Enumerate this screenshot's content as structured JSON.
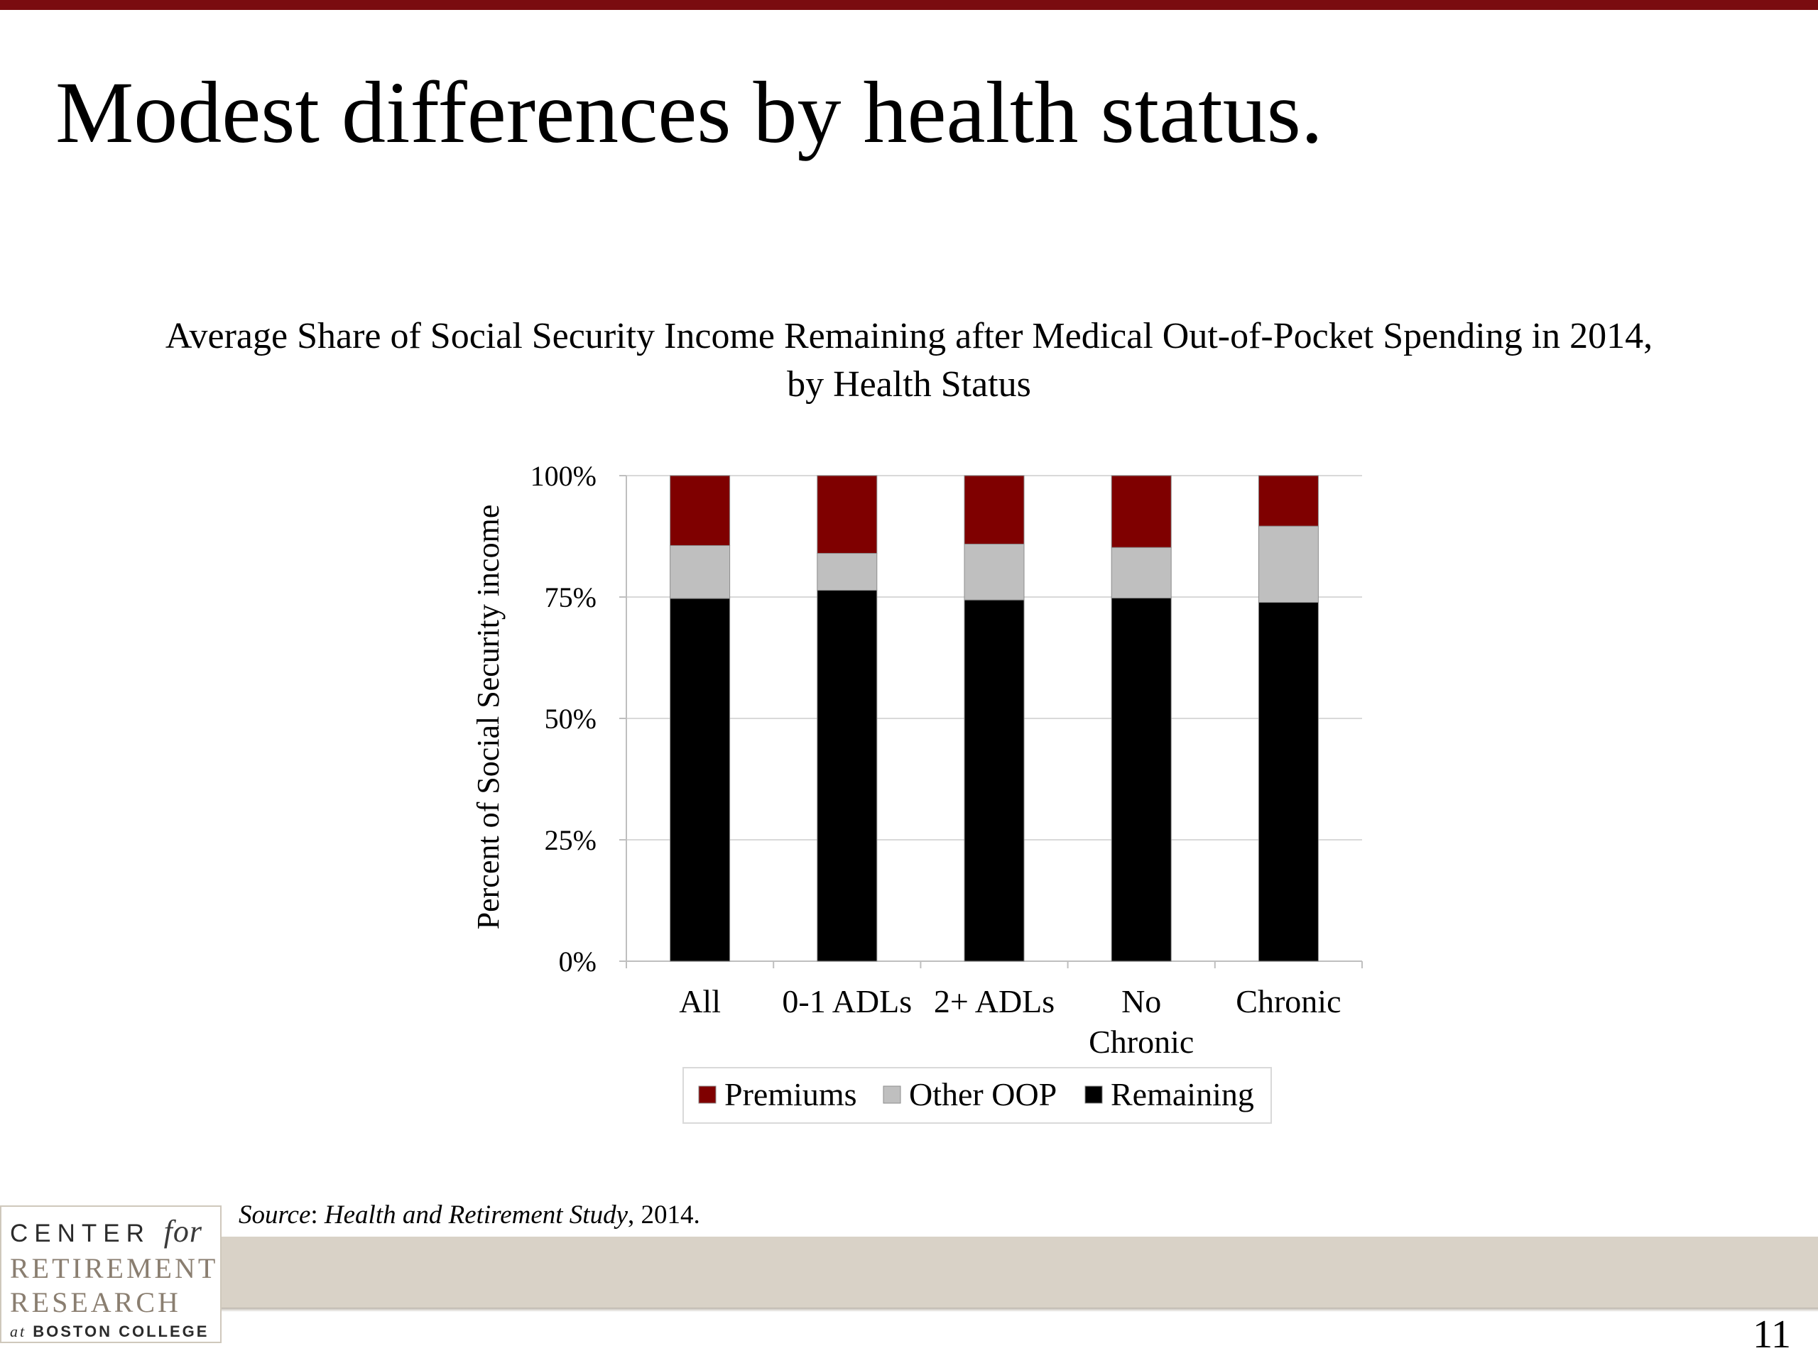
{
  "slide": {
    "title": "Modest differences by health status.",
    "page_number": "11",
    "source_label": "Source",
    "source_publication": "Health and Retirement Study",
    "source_suffix": ", 2014."
  },
  "logo": {
    "line1": "CENTER",
    "line1_for": "for",
    "line2": "RETIREMENT",
    "line3": "RESEARCH",
    "line4_at": "at",
    "line4": "BOSTON COLLEGE"
  },
  "colors": {
    "accent": "#7a0c10",
    "premiums": "#7f0000",
    "other_oop": "#bfbfbf",
    "remaining": "#000000",
    "footer_band": "#d9d2c7"
  },
  "chart_data": {
    "type": "bar",
    "stacked": true,
    "title": "Average Share of Social Security Income Remaining after Medical Out-of-Pocket Spending in 2014,",
    "subtitle": "by Health Status",
    "ylabel": "Percent of Social Security income",
    "xlabel": "",
    "ylim": [
      0,
      100
    ],
    "yticks": [
      "0%",
      "25%",
      "50%",
      "75%",
      "100%"
    ],
    "categories": [
      [
        "All"
      ],
      [
        "0-1 ADLs"
      ],
      [
        "2+ ADLs"
      ],
      [
        "No",
        "Chronic"
      ],
      [
        "Chronic"
      ]
    ],
    "series": [
      {
        "name": "Remaining",
        "color": "#000000",
        "values": [
          74.7,
          76.4,
          74.4,
          74.8,
          73.9
        ]
      },
      {
        "name": "Other OOP",
        "color": "#bfbfbf",
        "values": [
          10.9,
          7.6,
          11.5,
          10.4,
          15.7
        ]
      },
      {
        "name": "Premiums",
        "color": "#7f0000",
        "values": [
          14.4,
          16.0,
          14.1,
          14.8,
          10.4
        ]
      }
    ],
    "legend": {
      "position": "bottom",
      "order": [
        "Premiums",
        "Other OOP",
        "Remaining"
      ]
    },
    "grid": true
  }
}
